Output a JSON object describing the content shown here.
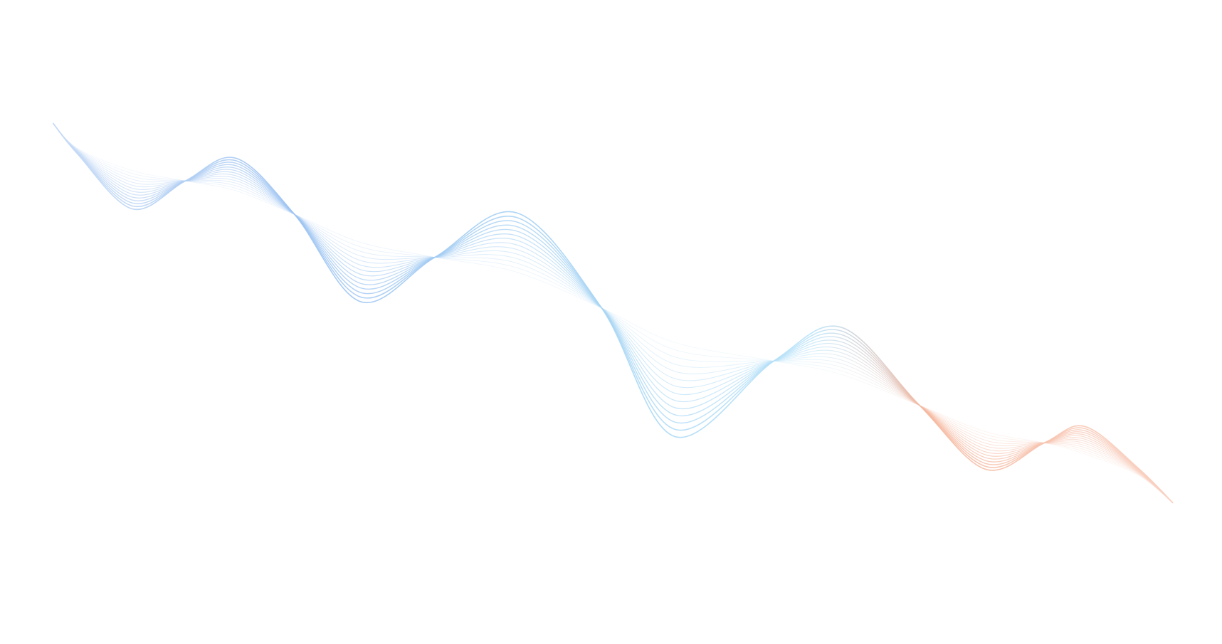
{
  "background_color": "#ffffff",
  "wave": {
    "line_count": 14,
    "gradient_colors": [
      "#c9dcf6",
      "#9ec4f2",
      "#a9d6f4",
      "#b9e3fa",
      "#f6b89f",
      "#f9d2c3"
    ]
  }
}
